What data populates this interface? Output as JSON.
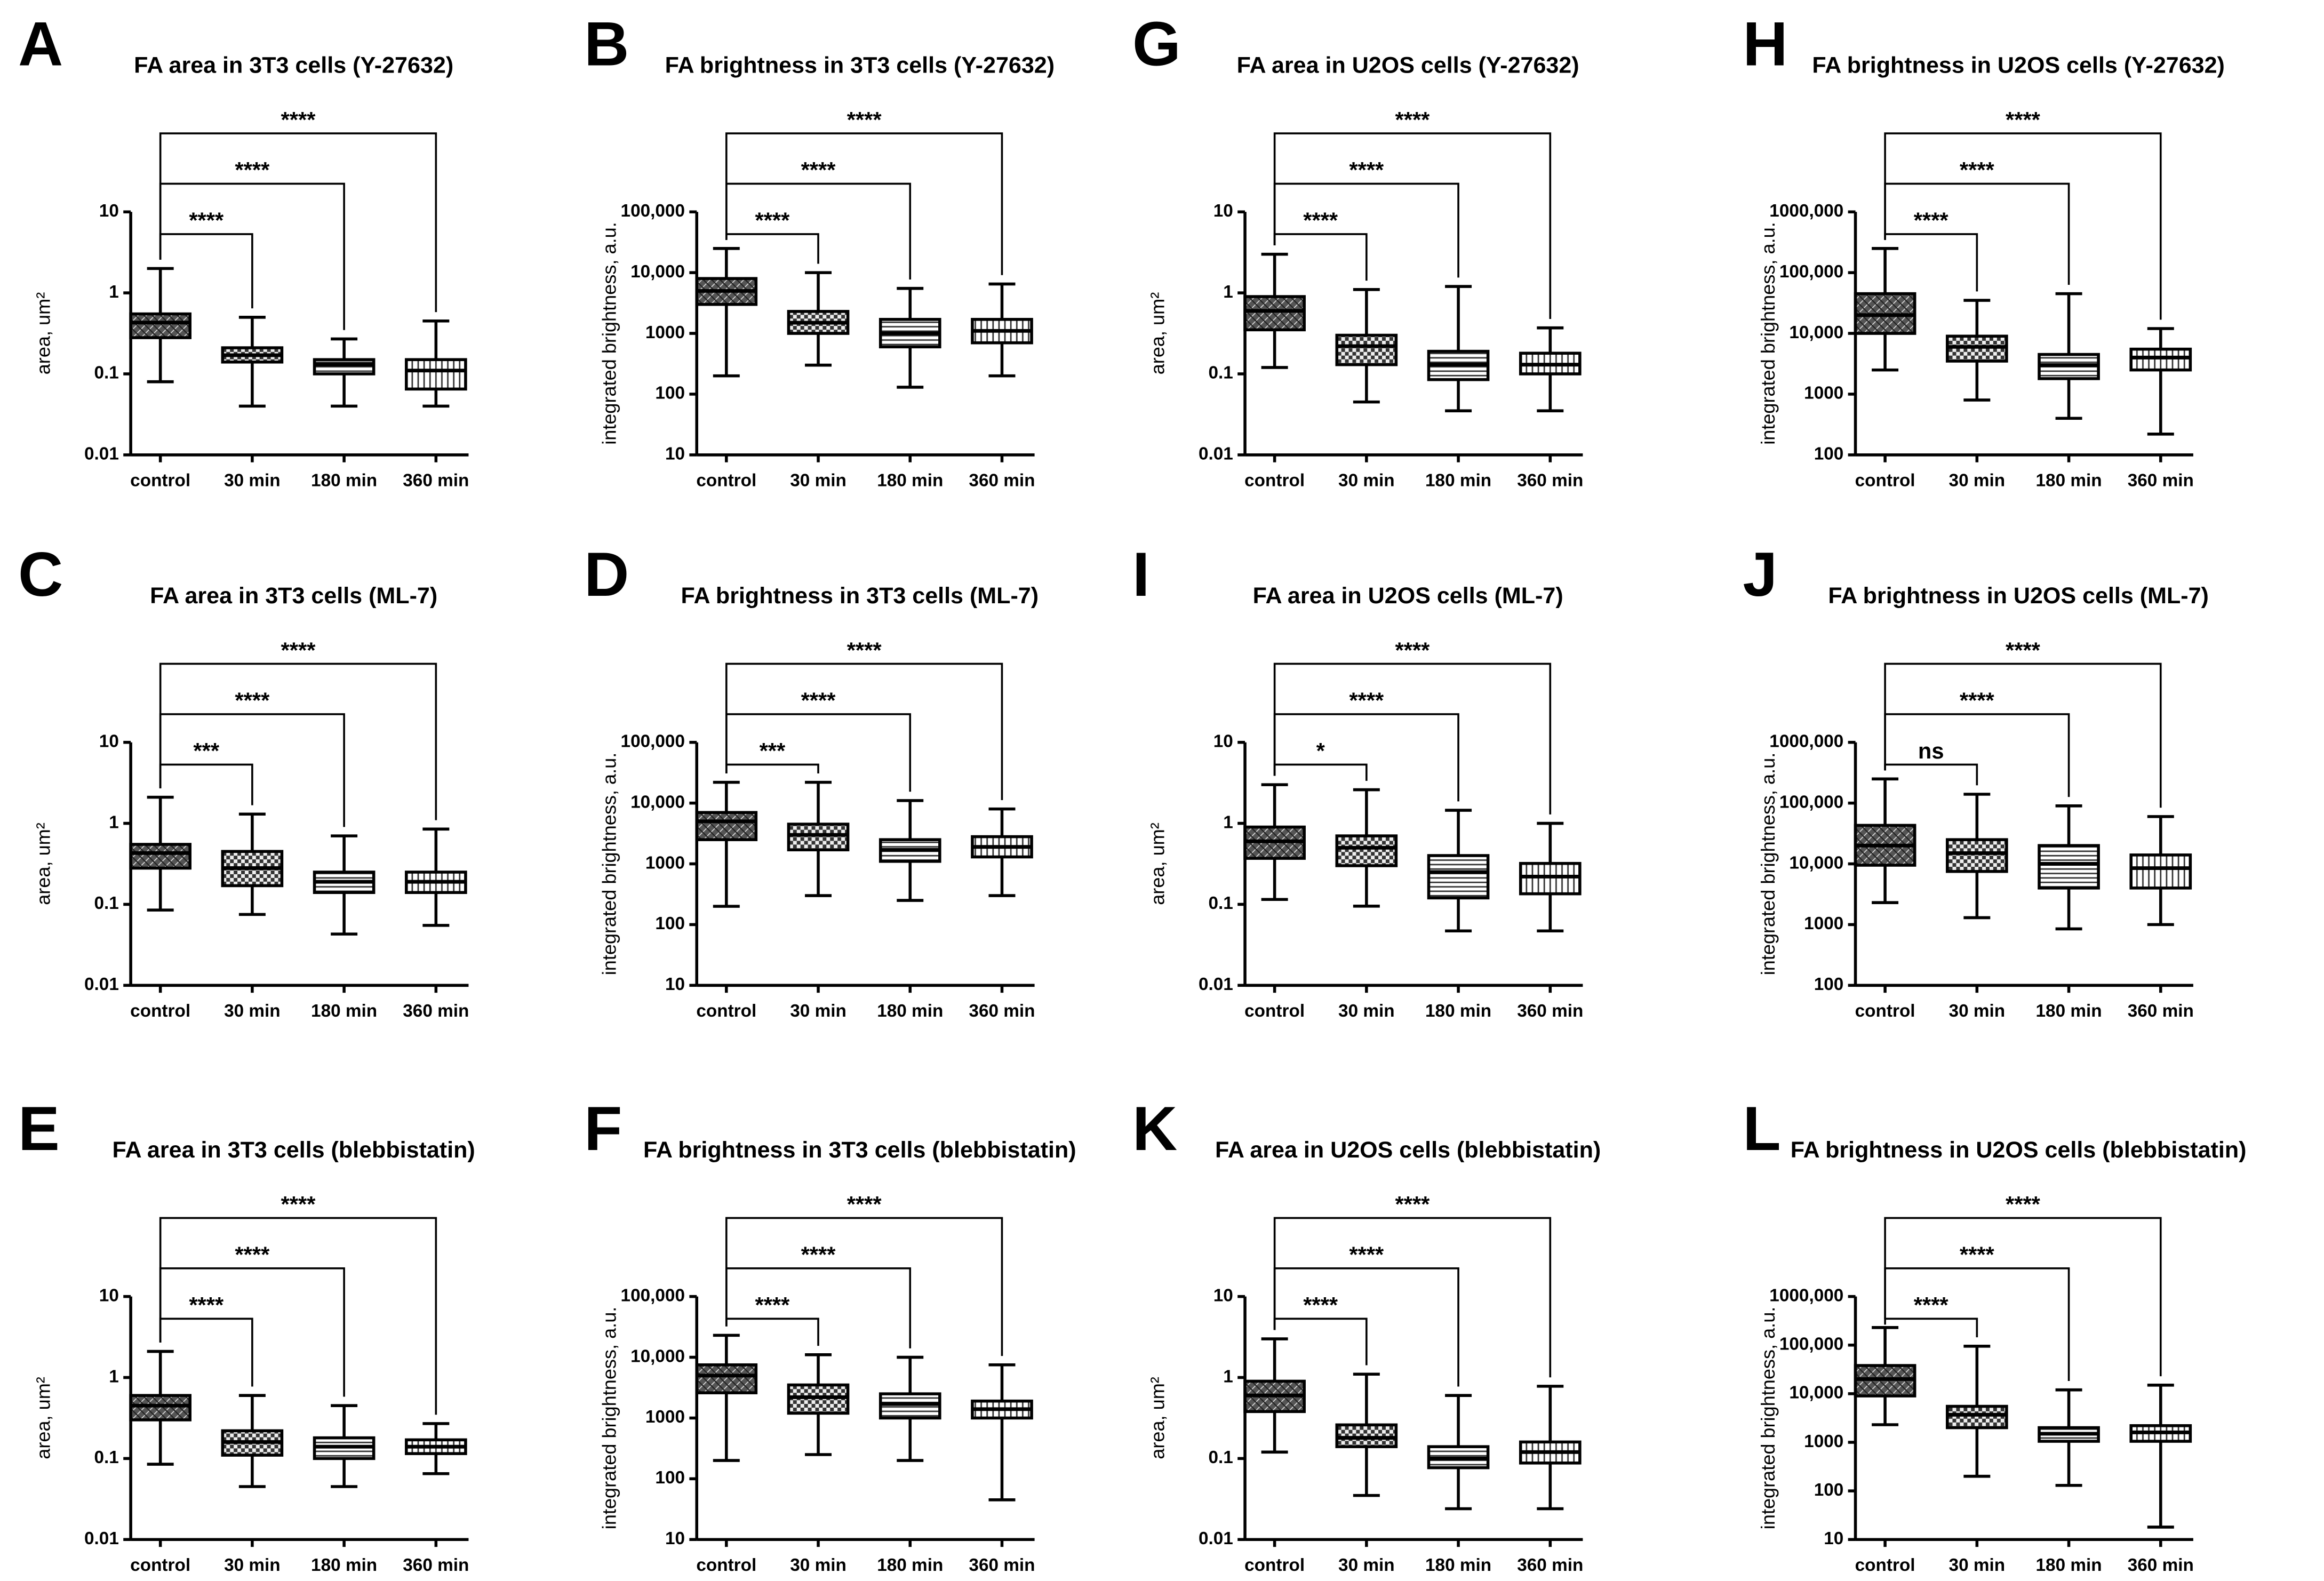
{
  "chart_data": [
    {
      "type": "box",
      "panel": "A",
      "title": "FA area in 3T3 cells (Y-27632)",
      "ylabel": "area, um²",
      "log": true,
      "categories": [
        "control",
        "30 min",
        "180 min",
        "360 min"
      ],
      "min": [
        0.08,
        0.04,
        0.04,
        0.04
      ],
      "q1": [
        0.28,
        0.14,
        0.1,
        0.065
      ],
      "median": [
        0.43,
        0.17,
        0.13,
        0.11
      ],
      "q3": [
        0.55,
        0.21,
        0.15,
        0.15
      ],
      "max": [
        2,
        0.5,
        0.27,
        0.45
      ],
      "annotations": [
        "****",
        "****",
        "****"
      ],
      "ylim": [
        0.01,
        10
      ],
      "yticks": [
        0.01,
        0.1,
        1,
        10
      ]
    },
    {
      "type": "box",
      "panel": "B",
      "title": "FA brightness in 3T3 cells (Y-27632)",
      "ylabel": "integrated brightness, a.u.",
      "log": true,
      "categories": [
        "control",
        "30 min",
        "180 min",
        "360 min"
      ],
      "min": [
        200,
        300,
        130,
        200
      ],
      "q1": [
        3000,
        1000,
        600,
        700
      ],
      "median": [
        5000,
        1500,
        1000,
        1100
      ],
      "q3": [
        8000,
        2300,
        1700,
        1700
      ],
      "max": [
        25000,
        10000,
        5500,
        6500
      ],
      "annotations": [
        "****",
        "****",
        "****"
      ],
      "ylim": [
        10,
        100000
      ],
      "yticks": [
        10,
        100,
        1000,
        {
          "value": 10000,
          "label": "10,000"
        },
        {
          "value": 100000,
          "label": "100,000"
        }
      ]
    },
    {
      "type": "box",
      "panel": "G",
      "title": "FA area in U2OS cells (Y-27632)",
      "ylabel": "area, um²",
      "log": true,
      "categories": [
        "control",
        "30 min",
        "180 min",
        "360 min"
      ],
      "min": [
        0.12,
        0.045,
        0.035,
        0.035
      ],
      "q1": [
        0.35,
        0.13,
        0.085,
        0.1
      ],
      "median": [
        0.6,
        0.22,
        0.13,
        0.13
      ],
      "q3": [
        0.9,
        0.3,
        0.19,
        0.18
      ],
      "max": [
        3,
        1.1,
        1.2,
        0.37
      ],
      "annotations": [
        "****",
        "****",
        "****"
      ],
      "ylim": [
        0.01,
        10
      ],
      "yticks": [
        0.01,
        0.1,
        1,
        10
      ]
    },
    {
      "type": "box",
      "panel": "H",
      "title": "FA brightness in U2OS cells (Y-27632)",
      "ylabel": "integrated brightness, a.u.",
      "log": true,
      "categories": [
        "control",
        "30 min",
        "180 min",
        "360 min"
      ],
      "min": [
        2500,
        800,
        400,
        220
      ],
      "q1": [
        10000,
        3500,
        1800,
        2500
      ],
      "median": [
        20000,
        6000,
        3000,
        4000
      ],
      "q3": [
        45000,
        9000,
        4500,
        5500
      ],
      "max": [
        250000,
        35000,
        45000,
        12000
      ],
      "annotations": [
        "****",
        "****",
        "****"
      ],
      "ylim": [
        100,
        1000000
      ],
      "yticks": [
        100,
        1000,
        {
          "value": 10000,
          "label": "10,000"
        },
        {
          "value": 100000,
          "label": "100,000"
        },
        {
          "value": 1000000,
          "label": "1000,000"
        }
      ]
    },
    {
      "type": "box",
      "panel": "C",
      "title": "FA area in 3T3 cells (ML-7)",
      "ylabel": "area, um²",
      "log": true,
      "categories": [
        "control",
        "30 min",
        "180 min",
        "360 min"
      ],
      "min": [
        0.085,
        0.075,
        0.043,
        0.055
      ],
      "q1": [
        0.28,
        0.17,
        0.14,
        0.14
      ],
      "median": [
        0.43,
        0.28,
        0.19,
        0.19
      ],
      "q3": [
        0.55,
        0.45,
        0.25,
        0.25
      ],
      "max": [
        2.1,
        1.3,
        0.7,
        0.85
      ],
      "annotations": [
        "***",
        "****",
        "****"
      ],
      "ylim": [
        0.01,
        10
      ],
      "yticks": [
        0.01,
        0.1,
        1,
        10
      ]
    },
    {
      "type": "box",
      "panel": "D",
      "title": "FA brightness in 3T3 cells (ML-7)",
      "ylabel": "integrated brightness, a.u.",
      "log": true,
      "categories": [
        "control",
        "30 min",
        "180 min",
        "360 min"
      ],
      "min": [
        200,
        300,
        250,
        300
      ],
      "q1": [
        2500,
        1700,
        1100,
        1300
      ],
      "median": [
        5000,
        3000,
        1700,
        1900
      ],
      "q3": [
        7000,
        4500,
        2500,
        2800
      ],
      "max": [
        22000,
        22000,
        11000,
        8000
      ],
      "annotations": [
        "***",
        "****",
        "****"
      ],
      "ylim": [
        10,
        100000
      ],
      "yticks": [
        10,
        100,
        1000,
        {
          "value": 10000,
          "label": "10,000"
        },
        {
          "value": 100000,
          "label": "100,000"
        }
      ]
    },
    {
      "type": "box",
      "panel": "I",
      "title": "FA area in U2OS cells (ML-7)",
      "ylabel": "area, um²",
      "log": true,
      "categories": [
        "control",
        "30 min",
        "180 min",
        "360 min"
      ],
      "min": [
        0.115,
        0.095,
        0.047,
        0.047
      ],
      "q1": [
        0.37,
        0.3,
        0.12,
        0.135
      ],
      "median": [
        0.6,
        0.5,
        0.25,
        0.22
      ],
      "q3": [
        0.9,
        0.7,
        0.4,
        0.32
      ],
      "max": [
        3,
        2.6,
        1.45,
        1
      ],
      "annotations": [
        "*",
        "****",
        "****"
      ],
      "ylim": [
        0.01,
        10
      ],
      "yticks": [
        0.01,
        0.1,
        1,
        10
      ]
    },
    {
      "type": "box",
      "panel": "J",
      "title": "FA brightness in U2OS cells (ML-7)",
      "ylabel": "integrated brightness, a.u.",
      "log": true,
      "categories": [
        "control",
        "30 min",
        "180 min",
        "360 min"
      ],
      "min": [
        2300,
        1300,
        850,
        1000
      ],
      "q1": [
        9500,
        7500,
        4000,
        4000
      ],
      "median": [
        20000,
        15000,
        10000,
        8500
      ],
      "q3": [
        43000,
        25000,
        20000,
        14000
      ],
      "max": [
        250000,
        140000,
        90000,
        60000
      ],
      "annotations": [
        "ns",
        "****",
        "****"
      ],
      "ylim": [
        100,
        1000000
      ],
      "yticks": [
        100,
        1000,
        {
          "value": 10000,
          "label": "10,000"
        },
        {
          "value": 100000,
          "label": "100,000"
        },
        {
          "value": 1000000,
          "label": "1000,000"
        }
      ]
    },
    {
      "type": "box",
      "panel": "E",
      "title": "FA area in 3T3 cells (blebbistatin)",
      "ylabel": "area, um²",
      "log": true,
      "categories": [
        "control",
        "30 min",
        "180 min",
        "360 min"
      ],
      "min": [
        0.085,
        0.045,
        0.045,
        0.065
      ],
      "q1": [
        0.3,
        0.11,
        0.1,
        0.115
      ],
      "median": [
        0.45,
        0.16,
        0.14,
        0.14
      ],
      "q3": [
        0.6,
        0.22,
        0.18,
        0.17
      ],
      "max": [
        2.1,
        0.6,
        0.45,
        0.27
      ],
      "annotations": [
        "****",
        "****",
        "****"
      ],
      "ylim": [
        0.01,
        10
      ],
      "yticks": [
        0.01,
        0.1,
        1,
        10
      ]
    },
    {
      "type": "box",
      "panel": "F",
      "title": "FA brightness in 3T3 cells (blebbistatin)",
      "ylabel": "integrated brightness, a.u.",
      "log": true,
      "categories": [
        "control",
        "30 min",
        "180 min",
        "360 min"
      ],
      "min": [
        200,
        250,
        200,
        45
      ],
      "q1": [
        2600,
        1200,
        1000,
        1000
      ],
      "median": [
        5000,
        2200,
        1700,
        1400
      ],
      "q3": [
        7500,
        3500,
        2500,
        1900
      ],
      "max": [
        23000,
        11000,
        10000,
        7500
      ],
      "annotations": [
        "****",
        "****",
        "****"
      ],
      "ylim": [
        10,
        100000
      ],
      "yticks": [
        10,
        100,
        1000,
        {
          "value": 10000,
          "label": "10,000"
        },
        {
          "value": 100000,
          "label": "100,000"
        }
      ]
    },
    {
      "type": "box",
      "panel": "K",
      "title": "FA area in U2OS cells (blebbistatin)",
      "ylabel": "area, um²",
      "log": true,
      "categories": [
        "control",
        "30 min",
        "180 min",
        "360 min"
      ],
      "min": [
        0.12,
        0.035,
        0.024,
        0.024
      ],
      "q1": [
        0.38,
        0.14,
        0.077,
        0.088
      ],
      "median": [
        0.6,
        0.18,
        0.1,
        0.12
      ],
      "q3": [
        0.9,
        0.26,
        0.14,
        0.16
      ],
      "max": [
        3,
        1.1,
        0.6,
        0.78
      ],
      "annotations": [
        "****",
        "****",
        "****"
      ],
      "ylim": [
        0.01,
        10
      ],
      "yticks": [
        0.01,
        0.1,
        1,
        10
      ]
    },
    {
      "type": "box",
      "panel": "L",
      "title": "FA brightness in U2OS cells (blebbistatin)",
      "ylabel": "integrated brightness, a.u.",
      "log": true,
      "categories": [
        "control",
        "30 min",
        "180 min",
        "360 min"
      ],
      "min": [
        2300,
        200,
        130,
        18
      ],
      "q1": [
        9000,
        2000,
        1050,
        1050
      ],
      "median": [
        20000,
        3700,
        1500,
        1600
      ],
      "q3": [
        38000,
        5500,
        2000,
        2200
      ],
      "max": [
        230000,
        95000,
        12000,
        15000
      ],
      "annotations": [
        "****",
        "****",
        "****"
      ],
      "ylim": [
        10,
        1000000
      ],
      "yticks": [
        10,
        100,
        1000,
        {
          "value": 10000,
          "label": "10,000"
        },
        {
          "value": 100000,
          "label": "100,000"
        },
        {
          "value": 1000000,
          "label": "1000,000"
        }
      ]
    }
  ]
}
